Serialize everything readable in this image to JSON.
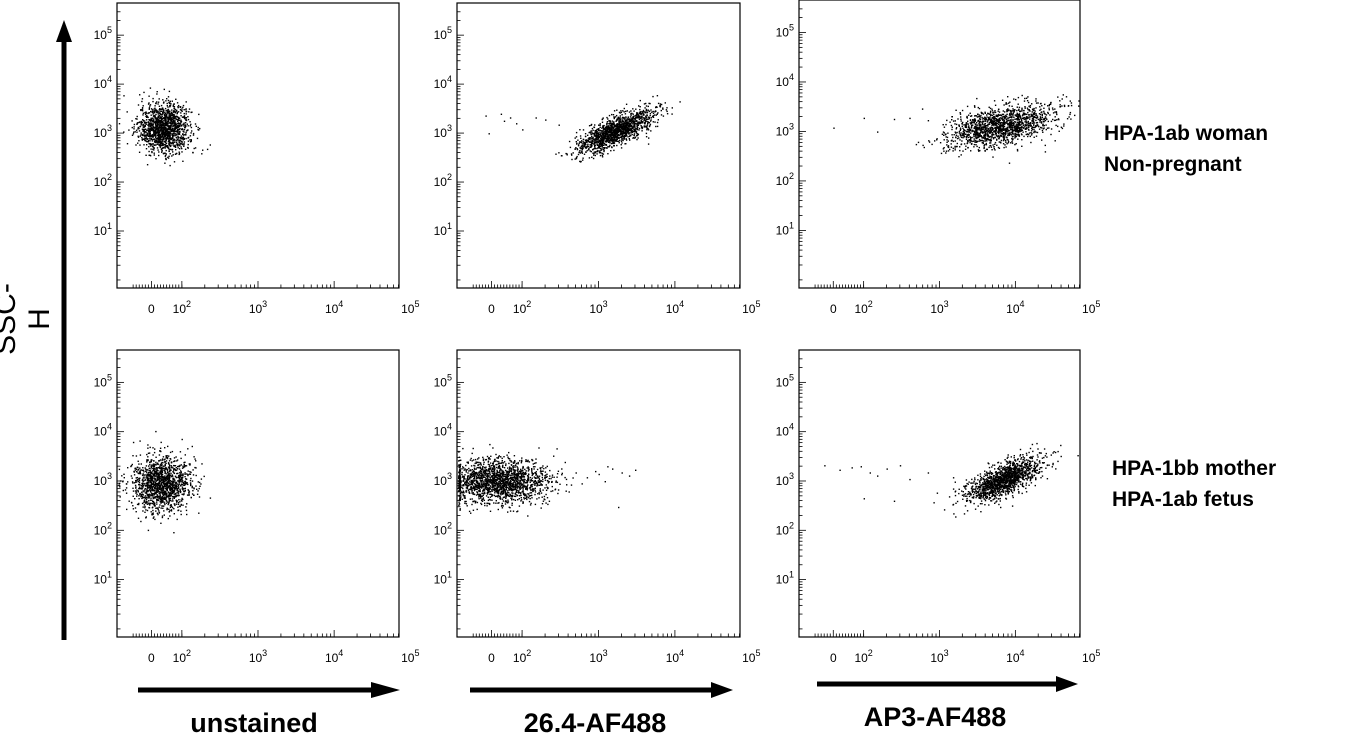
{
  "figure": {
    "y_axis_label": "SSC-H",
    "column_labels": [
      "unstained",
      "26.4-AF488",
      "AP3-AF488"
    ],
    "row_labels": [
      [
        "HPA-1ab woman",
        "Non-pregnant"
      ],
      [
        "HPA-1bb mother",
        "HPA-1ab fetus"
      ]
    ]
  },
  "chart_data": [
    {
      "type": "scatter",
      "row": "HPA-1ab woman Non-pregnant",
      "column": "unstained",
      "xlabel": "",
      "ylabel": "SSC-H",
      "x_scale": "biexponential",
      "y_scale": "log",
      "xticks": [
        "0",
        "10^2",
        "10^3",
        "10^4",
        "10^5"
      ],
      "yticks": [
        "10^1",
        "10^2",
        "10^3",
        "10^4",
        "10^5"
      ],
      "populations": [
        {
          "x_center": 40,
          "y_center": 1300,
          "x_spread_decades": 0.35,
          "y_spread_decades": 0.25,
          "correlation": 0,
          "count": 1400
        }
      ],
      "outliers": []
    },
    {
      "type": "scatter",
      "row": "HPA-1ab woman Non-pregnant",
      "column": "26.4-AF488",
      "xlabel": "",
      "ylabel": "SSC-H",
      "x_scale": "biexponential",
      "y_scale": "log",
      "xticks": [
        "0",
        "10^2",
        "10^3",
        "10^4",
        "10^5"
      ],
      "yticks": [
        "10^1",
        "10^2",
        "10^3",
        "10^4",
        "10^5"
      ],
      "populations": [
        {
          "x_center": 1600,
          "y_center": 1100,
          "x_spread_decades": 0.25,
          "y_spread_decades": 0.22,
          "correlation": 0.75,
          "count": 1400
        }
      ],
      "outliers": [
        [
          -20,
          2300
        ],
        [
          40,
          1800
        ],
        [
          60,
          2100
        ],
        [
          80,
          1600
        ],
        [
          30,
          2500
        ],
        [
          150,
          2100
        ],
        [
          200,
          1900
        ],
        [
          -10,
          1000
        ],
        [
          100,
          1200
        ],
        [
          300,
          1500
        ]
      ]
    },
    {
      "type": "scatter",
      "row": "HPA-1ab woman Non-pregnant",
      "column": "AP3-AF488",
      "xlabel": "",
      "ylabel": "SSC-H",
      "x_scale": "biexponential",
      "y_scale": "log",
      "xticks": [
        "0",
        "10^2",
        "10^3",
        "10^4",
        "10^5"
      ],
      "yticks": [
        "10^1",
        "10^2",
        "10^3",
        "10^4",
        "10^5"
      ],
      "populations": [
        {
          "x_center": 6000,
          "y_center": 1300,
          "x_spread_decades": 0.35,
          "y_spread_decades": 0.22,
          "correlation": 0.45,
          "count": 1500
        }
      ],
      "outliers": [
        [
          0,
          1200
        ],
        [
          100,
          1900
        ],
        [
          250,
          1800
        ],
        [
          400,
          1900
        ],
        [
          700,
          1700
        ],
        [
          1200,
          800
        ],
        [
          150,
          1000
        ]
      ]
    },
    {
      "type": "scatter",
      "row": "HPA-1bb mother HPA-1ab fetus",
      "column": "unstained",
      "xlabel": "",
      "ylabel": "SSC-H",
      "x_scale": "biexponential",
      "y_scale": "log",
      "xticks": [
        "0",
        "10^2",
        "10^3",
        "10^4",
        "10^5"
      ],
      "yticks": [
        "10^1",
        "10^2",
        "10^3",
        "10^4",
        "10^5"
      ],
      "populations": [
        {
          "x_center": 30,
          "y_center": 900,
          "x_spread_decades": 0.4,
          "y_spread_decades": 0.28,
          "correlation": 0,
          "count": 1400
        }
      ],
      "outliers": [
        [
          150,
          1900
        ],
        [
          180,
          2300
        ]
      ]
    },
    {
      "type": "scatter",
      "row": "HPA-1bb mother HPA-1ab fetus",
      "column": "26.4-AF488",
      "xlabel": "",
      "ylabel": "SSC-H",
      "x_scale": "biexponential",
      "y_scale": "log",
      "xticks": [
        "0",
        "10^2",
        "10^3",
        "10^4",
        "10^5"
      ],
      "yticks": [
        "10^1",
        "10^2",
        "10^3",
        "10^4",
        "10^5"
      ],
      "populations": [
        {
          "x_center": 20,
          "y_center": 1000,
          "x_spread_decades": 0.7,
          "y_spread_decades": 0.22,
          "correlation": 0,
          "count": 1800
        }
      ],
      "outliers": [
        [
          500,
          1500
        ],
        [
          700,
          1200
        ],
        [
          900,
          1600
        ],
        [
          1200,
          1000
        ],
        [
          1500,
          1800
        ],
        [
          2000,
          1500
        ],
        [
          2500,
          1300
        ],
        [
          3000,
          1700
        ],
        [
          1800,
          300
        ],
        [
          600,
          900
        ],
        [
          1000,
          1400
        ],
        [
          1300,
          2000
        ]
      ]
    },
    {
      "type": "scatter",
      "row": "HPA-1bb mother HPA-1ab fetus",
      "column": "AP3-AF488",
      "xlabel": "",
      "ylabel": "SSC-H",
      "x_scale": "biexponential",
      "y_scale": "log",
      "xticks": [
        "0",
        "10^2",
        "10^3",
        "10^4",
        "10^5"
      ],
      "yticks": [
        "10^1",
        "10^2",
        "10^3",
        "10^4",
        "10^5"
      ],
      "populations": [
        {
          "x_center": 7000,
          "y_center": 1100,
          "x_spread_decades": 0.25,
          "y_spread_decades": 0.22,
          "correlation": 0.7,
          "count": 1400
        }
      ],
      "outliers": [
        [
          -30,
          2100
        ],
        [
          20,
          1700
        ],
        [
          60,
          1900
        ],
        [
          90,
          2000
        ],
        [
          120,
          1500
        ],
        [
          200,
          1800
        ],
        [
          300,
          2100
        ],
        [
          150,
          1300
        ],
        [
          100,
          450
        ],
        [
          250,
          400
        ],
        [
          400,
          1100
        ],
        [
          700,
          1500
        ],
        [
          1500,
          1200
        ],
        [
          30000,
          2000
        ]
      ]
    }
  ]
}
